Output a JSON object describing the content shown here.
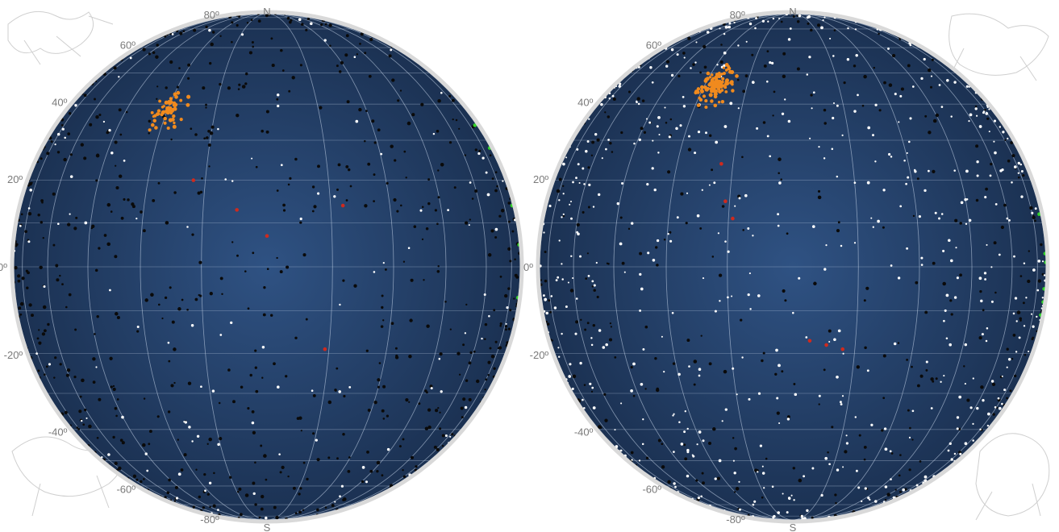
{
  "colors": {
    "globe_center": "#2f5283",
    "globe_edge": "#1b3152",
    "star_white": "#ffffff",
    "star_black": "#0a0a0a",
    "cluster_orange": "#f08a1e",
    "marker_red": "#cf2a1e",
    "marker_green": "#33d12b"
  },
  "icons": [
    "constellation-figure-icon",
    "constellation-figure-icon",
    "constellation-figure-icon",
    "constellation-figure-icon"
  ],
  "panels": [
    {
      "lat_labels": [
        "80º",
        "60º",
        "40º",
        "20º",
        "0º",
        "-20º",
        "-40º",
        "-60º",
        "-80º"
      ],
      "pole_labels": [
        "N",
        "S"
      ],
      "white_star_count": 120,
      "black_star_count": 620,
      "cluster": {
        "ra": -30,
        "dec": 38,
        "count": 70
      },
      "red_markers": [
        [
          -18,
          20
        ],
        [
          -7,
          13
        ],
        [
          0,
          7
        ],
        [
          18,
          14
        ],
        [
          14,
          -19
        ]
      ],
      "green_markers": [
        [
          82,
          34
        ],
        [
          85,
          28
        ],
        [
          86,
          14
        ],
        [
          88,
          5
        ],
        [
          87,
          -7
        ]
      ]
    },
    {
      "lat_labels": [
        "80º",
        "60º",
        "40º",
        "20º",
        "0º",
        "-20º",
        "-40º",
        "-60º",
        "-80º"
      ],
      "pole_labels": [
        "N",
        "S"
      ],
      "white_star_count": 560,
      "black_star_count": 330,
      "cluster": {
        "ra": -26,
        "dec": 46,
        "count": 150
      },
      "red_markers": [
        [
          -18,
          24
        ],
        [
          -16,
          15
        ],
        [
          -14,
          11
        ],
        [
          4,
          -17
        ],
        [
          8,
          -18
        ],
        [
          12,
          -19
        ]
      ],
      "green_markers": [
        [
          84,
          12
        ],
        [
          86,
          3
        ],
        [
          85,
          -5
        ],
        [
          87,
          -8
        ],
        [
          86,
          -11
        ],
        [
          88,
          1
        ]
      ]
    }
  ]
}
